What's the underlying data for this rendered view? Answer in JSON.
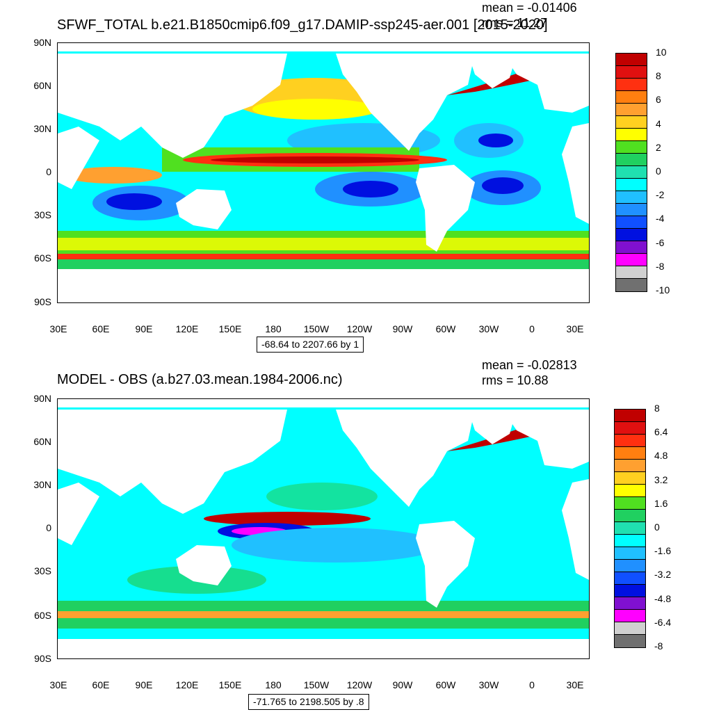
{
  "panels": [
    {
      "title": "SFWF_TOTAL b.e21.B1850cmip6.f09_g17.DAMIP-ssp245-aer.001 [2015-2020]",
      "mean": "mean = -0.01406",
      "rms": "rms = 11.27",
      "range": "-68.64 to 2207.66 by 1",
      "colorbar_labels": [
        "10",
        "8",
        "6",
        "4",
        "2",
        "0",
        "-2",
        "-4",
        "-6",
        "-8",
        "-10"
      ]
    },
    {
      "title": "MODEL - OBS (a.b27.03.mean.1984-2006.nc)",
      "mean": "mean = -0.02813",
      "rms": "rms = 10.88",
      "range": "-71.765 to 2198.505 by .8",
      "colorbar_labels": [
        "8",
        "6.4",
        "4.8",
        "3.2",
        "1.6",
        "0",
        "-1.6",
        "-3.2",
        "-4.8",
        "-6.4",
        "-8"
      ]
    }
  ],
  "lat_labels": [
    "90N",
    "60N",
    "30N",
    "0",
    "30S",
    "60S",
    "90S"
  ],
  "lon_labels": [
    "30E",
    "60E",
    "90E",
    "120E",
    "150E",
    "180",
    "150W",
    "120W",
    "90W",
    "60W",
    "30W",
    "0",
    "30E"
  ],
  "colors": {
    "colorbar": [
      "#c00000",
      "#e01010",
      "#ff3010",
      "#ff7f10",
      "#ffa030",
      "#ffd020",
      "#ffff00",
      "#50e020",
      "#20d060",
      "#20e0b0",
      "#00ffff",
      "#20c0ff",
      "#2090ff",
      "#1050ff",
      "#0010e0",
      "#8010d0",
      "#ff00ff",
      "#d0d0d0",
      "#707070"
    ],
    "land": "#ffffff"
  }
}
